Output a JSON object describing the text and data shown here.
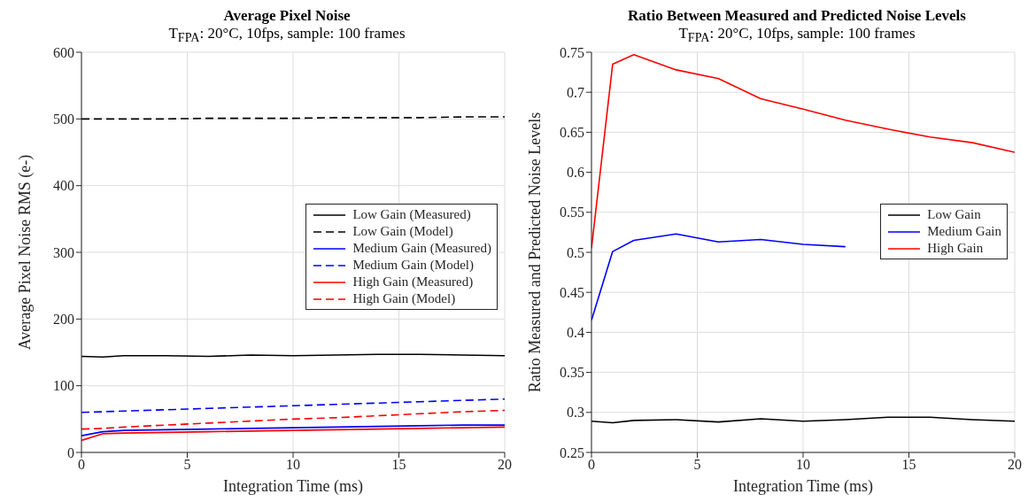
{
  "chart_data": [
    {
      "type": "line",
      "title": "Average Pixel Noise",
      "subtitle": "T$_{FPA}$: 20°C, 10fps, sample: 100 frames",
      "xlabel": "Integration Time (ms)",
      "ylabel": "Average Pixel Noise RMS (e-)",
      "x": [
        0,
        1,
        2,
        4,
        6,
        8,
        10,
        12,
        14,
        16,
        18,
        20
      ],
      "xlim": [
        0,
        20
      ],
      "xticks": [
        0,
        5,
        10,
        15,
        20
      ],
      "ylim": [
        0,
        600
      ],
      "yticks": [
        0,
        100,
        200,
        300,
        400,
        500,
        600
      ],
      "grid": true,
      "legend": "right",
      "series": [
        {
          "name": "Low Gain (Measured)",
          "color": "#000000",
          "line_style": "solid",
          "values": [
            144,
            143,
            145,
            145,
            144,
            146,
            145,
            146,
            147,
            147,
            146,
            145
          ]
        },
        {
          "name": "Low Gain (Model)",
          "color": "#000000",
          "line_style": "dashed",
          "values": [
            500,
            500,
            500,
            500,
            501,
            501,
            501,
            502,
            502,
            502,
            503,
            503
          ]
        },
        {
          "name": "Medium Gain (Measured)",
          "color": "#0000ff",
          "line_style": "solid",
          "values": [
            25,
            31,
            33,
            34,
            35,
            36,
            37,
            38,
            39,
            40,
            41,
            41
          ]
        },
        {
          "name": "Medium Gain (Model)",
          "color": "#0000ff",
          "line_style": "dashed",
          "values": [
            60,
            61,
            62,
            64,
            66,
            68,
            70,
            72,
            74,
            76,
            78,
            80
          ]
        },
        {
          "name": "High Gain (Measured)",
          "color": "#ff0000",
          "line_style": "solid",
          "values": [
            18,
            28,
            29,
            30,
            31,
            32,
            33,
            34,
            35,
            36,
            37,
            38
          ]
        },
        {
          "name": "High Gain (Model)",
          "color": "#ff0000",
          "line_style": "dashed",
          "values": [
            35,
            36,
            38,
            41,
            44,
            47,
            50,
            52,
            55,
            58,
            61,
            63
          ]
        }
      ]
    },
    {
      "type": "line",
      "title": "Ratio Between Measured and Predicted Noise Levels",
      "subtitle": "T$_{FPA}$: 20°C, 10fps, sample: 100 frames",
      "xlabel": "Integration Time (ms)",
      "ylabel": "Ratio Measured and Predicted Noise Levels",
      "x": [
        0,
        1,
        2,
        4,
        6,
        8,
        10,
        12,
        14,
        16,
        18,
        20
      ],
      "xlim": [
        0,
        20
      ],
      "xticks": [
        0,
        5,
        10,
        15,
        20
      ],
      "ylim": [
        0.25,
        0.75
      ],
      "yticks": [
        0.25,
        0.3,
        0.35,
        0.4,
        0.45,
        0.5,
        0.55,
        0.6,
        0.65,
        0.7,
        0.75
      ],
      "grid": true,
      "legend": "right",
      "series": [
        {
          "name": "Low Gain",
          "color": "#000000",
          "values": [
            0.289,
            0.287,
            0.29,
            0.291,
            0.288,
            0.292,
            0.289,
            0.291,
            0.294,
            0.294,
            0.291,
            0.289
          ]
        },
        {
          "name": "Medium Gain",
          "color": "#0000ff",
          "values": [
            0.415,
            0.501,
            0.515,
            0.523,
            0.513,
            0.516,
            0.51,
            0.507,
            null,
            null,
            null,
            null
          ]
        },
        {
          "name": "High Gain",
          "color": "#ff0000",
          "values": [
            0.505,
            0.735,
            0.747,
            0.728,
            0.717,
            0.692,
            0.679,
            0.665,
            0.654,
            0.644,
            0.637,
            0.625
          ]
        }
      ]
    }
  ]
}
